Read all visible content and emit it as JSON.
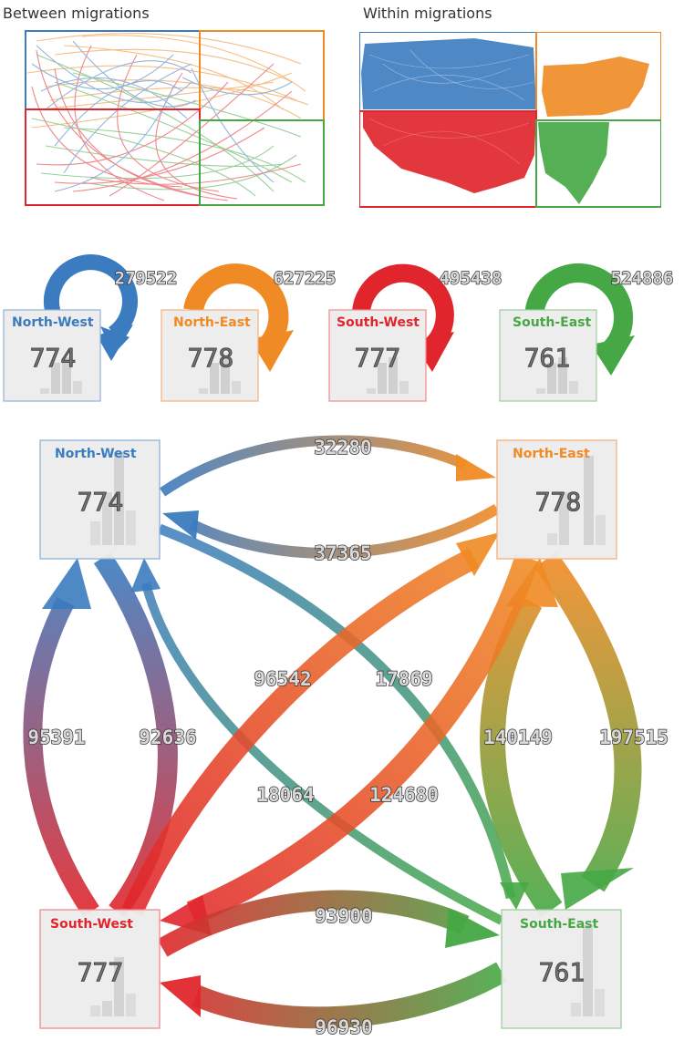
{
  "panels": {
    "between_title": "Between migrations",
    "within_title": "Within migrations"
  },
  "colors": {
    "north_west": "#3b7bbf",
    "north_east": "#f08a24",
    "south_west": "#e0262c",
    "south_east": "#46a845"
  },
  "regions": {
    "north_west": {
      "label": "North-West",
      "count": "774"
    },
    "north_east": {
      "label": "North-East",
      "count": "778"
    },
    "south_west": {
      "label": "South-West",
      "count": "777"
    },
    "south_east": {
      "label": "South-East",
      "count": "761"
    }
  },
  "self_flows": {
    "north_west": "279522",
    "north_east": "627225",
    "south_west": "495438",
    "south_east": "524886"
  },
  "flows": {
    "nw_to_ne": "32280",
    "ne_to_nw": "37365",
    "nw_to_sw": "92636",
    "sw_to_nw": "95391",
    "ne_to_se": "197515",
    "se_to_ne": "140149",
    "nw_to_se": "17869",
    "se_to_nw": "18064",
    "ne_to_sw": "124680",
    "sw_to_ne": "96542",
    "sw_to_se": "93900",
    "se_to_sw": "96930"
  }
}
